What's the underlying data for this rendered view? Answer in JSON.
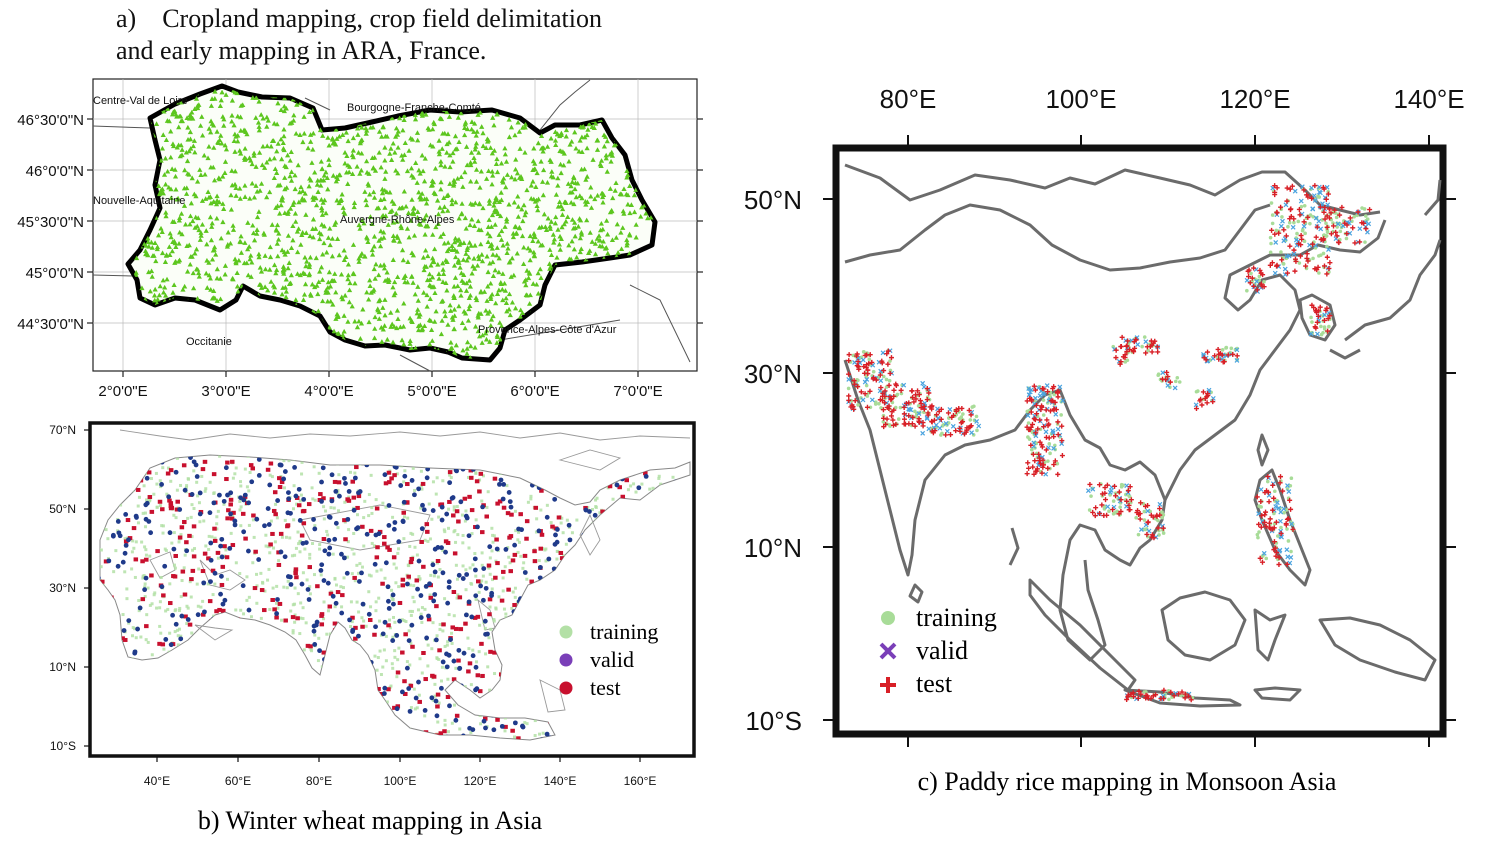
{
  "panel_a": {
    "caption_line1": "a)    Cropland mapping, crop field delimitation",
    "caption_line2": "and early mapping in ARA, France.",
    "y_ticks": [
      "46°30'0\"N",
      "46°0'0\"N",
      "45°30'0\"N",
      "45°0'0\"N",
      "44°30'0\"N"
    ],
    "x_ticks": [
      "2°0'0\"E",
      "3°0'0\"E",
      "4°0'0\"E",
      "5°0'0\"E",
      "6°0'0\"E",
      "7°0'0\"E"
    ],
    "regions": {
      "centre": "Centre-Val de Loire",
      "bourgogne": "Bourgogne-Franche-Comté",
      "nouvelle": "Nouvelle-Aquitaine",
      "auvergne": "Auvergne-Rhône-Alpes",
      "occitanie": "Occitanie",
      "provence": "Provence-Alpes-Côte d'Azur"
    },
    "colors": {
      "samples": "#5cc61e",
      "border": "#000000"
    }
  },
  "panel_b": {
    "caption": "b) Winter wheat mapping in Asia",
    "y_ticks": [
      "70°N",
      "50°N",
      "30°N",
      "10°N",
      "10°S"
    ],
    "x_ticks": [
      "40°E",
      "60°E",
      "80°E",
      "100°E",
      "120°E",
      "140°E",
      "160°E"
    ],
    "legend": [
      {
        "label": "training",
        "color": "#b3e0a6"
      },
      {
        "label": "valid",
        "color": "#7a3fb8"
      },
      {
        "label": "test",
        "color": "#c8102e"
      }
    ],
    "colors": {
      "valid_points": "#1f3a8a"
    }
  },
  "panel_c": {
    "caption": "c) Paddy rice mapping in Monsoon Asia",
    "y_ticks": [
      "50°N",
      "30°N",
      "10°N",
      "10°S"
    ],
    "x_ticks": [
      "80°E",
      "100°E",
      "120°E",
      "140°E"
    ],
    "legend": [
      {
        "label": "training",
        "color": "#a8dc98",
        "symbol": "circle"
      },
      {
        "label": "valid",
        "color": "#7a3fb8",
        "symbol": "cross-x"
      },
      {
        "label": "test",
        "color": "#d81f26",
        "symbol": "plus"
      }
    ],
    "colors": {
      "coast": "#6b6b6b"
    }
  }
}
